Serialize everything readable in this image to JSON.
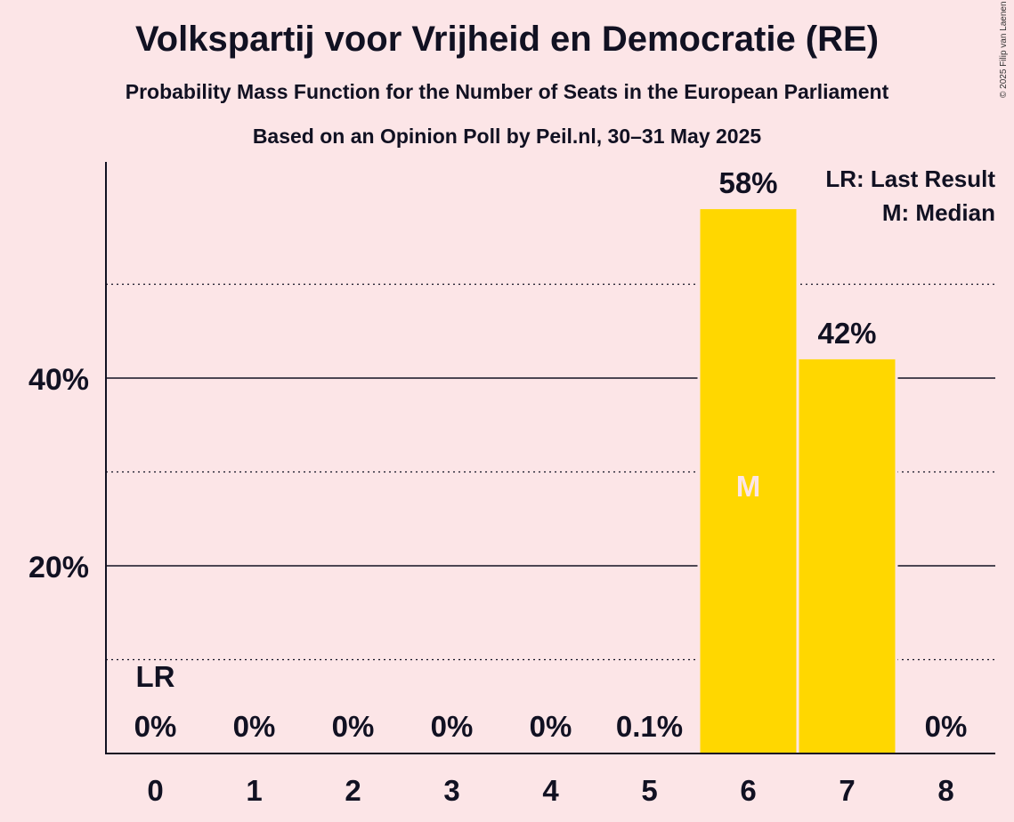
{
  "chart_data": {
    "type": "bar",
    "title": "Volkspartij voor Vrijheid en Democratie (RE)",
    "subtitle": "Probability Mass Function for the Number of Seats in the European Parliament",
    "subtitle2": "Based on an Opinion Poll by Peil.nl, 30–31 May 2025",
    "copyright": "© 2025 Filip van Laenen",
    "categories": [
      "0",
      "1",
      "2",
      "3",
      "4",
      "5",
      "6",
      "7",
      "8"
    ],
    "values": [
      0,
      0,
      0,
      0,
      0,
      0.1,
      58,
      42,
      0
    ],
    "value_labels": [
      "0%",
      "0%",
      "0%",
      "0%",
      "0%",
      "0.1%",
      "58%",
      "42%",
      "0%"
    ],
    "y_tick_values": [
      20,
      40
    ],
    "y_tick_labels": [
      "20%",
      "40%"
    ],
    "y_dotted_values": [
      10,
      30,
      50
    ],
    "ylim": [
      0,
      63
    ],
    "last_result_index": 0,
    "last_result_label": "LR",
    "median_index": 6,
    "median_label": "M",
    "legend": [
      "LR: Last Result",
      "M: Median"
    ],
    "legend_position": "top-right",
    "bar_color": "#FFD700",
    "median_text_color": "#FCE5E7"
  }
}
